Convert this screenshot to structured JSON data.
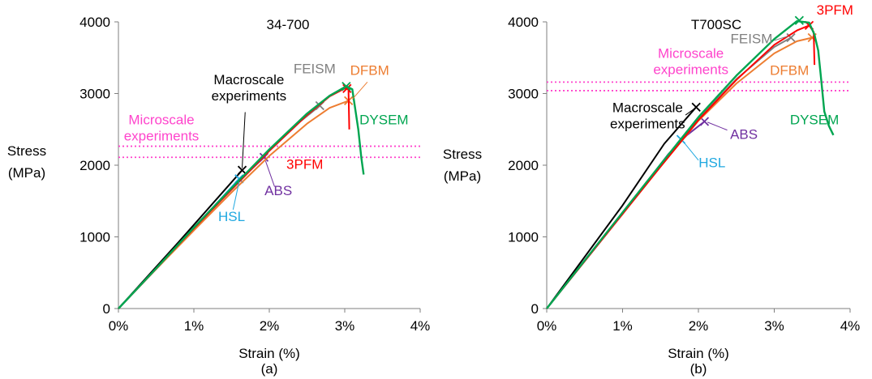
{
  "colors": {
    "macro": "#000000",
    "hsl": "#1fa8e0",
    "abs": "#7030a0",
    "feism": "#808080",
    "dfbm": "#ed7d31",
    "3pfm": "#ff0000",
    "dysem": "#00a550",
    "micro": "#ff44cc",
    "axis": "#7f7f7f"
  },
  "chart_data": [
    {
      "type": "line",
      "panel_label": "(a)",
      "title": "34-700",
      "xlabel": "Strain (%)",
      "ylabel_line1": "Stress",
      "ylabel_line2": "(MPa)",
      "xlim": [
        0,
        4
      ],
      "ylim": [
        0,
        4000
      ],
      "xticks": [
        0,
        1,
        2,
        3,
        4
      ],
      "xtick_labels": [
        "0%",
        "1%",
        "2%",
        "3%",
        "4%"
      ],
      "yticks": [
        0,
        1000,
        2000,
        3000,
        4000
      ],
      "ytick_labels": [
        "0",
        "1000",
        "2000",
        "3000",
        "4000"
      ],
      "grid": false,
      "hlines": [
        {
          "key": "micro",
          "y": 2265,
          "style": "dotted"
        },
        {
          "key": "micro",
          "y": 2110,
          "style": "dotted"
        }
      ],
      "series": [
        {
          "key": "macro",
          "name": "Macroscale experiments",
          "points": [
            [
              0,
              0
            ],
            [
              0.8,
              930
            ],
            [
              1.64,
              1930
            ]
          ],
          "end_marker": [
            1.64,
            1930
          ]
        },
        {
          "key": "hsl",
          "name": "HSL",
          "points": [
            [
              0,
              0
            ],
            [
              0.8,
              890
            ],
            [
              1.6,
              1810
            ]
          ],
          "end_marker": [
            1.6,
            1810
          ]
        },
        {
          "key": "abs",
          "name": "ABS",
          "points": [
            [
              0,
              0
            ],
            [
              0.8,
              880
            ],
            [
              1.5,
              1680
            ],
            [
              1.93,
              2110
            ]
          ],
          "end_marker": [
            1.93,
            2110
          ]
        },
        {
          "key": "feism",
          "name": "FEISM",
          "points": [
            [
              0,
              0
            ],
            [
              0.5,
              560
            ],
            [
              1.0,
              1120
            ],
            [
              1.5,
              1660
            ],
            [
              2.0,
              2200
            ],
            [
              2.4,
              2600
            ],
            [
              2.67,
              2830
            ]
          ],
          "end_marker": [
            2.67,
            2830
          ]
        },
        {
          "key": "dfbm",
          "name": "DFBM",
          "points": [
            [
              0,
              0
            ],
            [
              0.5,
              550
            ],
            [
              1.0,
              1090
            ],
            [
              1.5,
              1620
            ],
            [
              2.0,
              2130
            ],
            [
              2.5,
              2580
            ],
            [
              2.8,
              2800
            ],
            [
              3.05,
              2900
            ]
          ],
          "end_marker": [
            3.05,
            2900
          ]
        },
        {
          "key": "3pfm",
          "name": "3PFM",
          "points": [
            [
              0,
              0
            ],
            [
              0.5,
              560
            ],
            [
              1.0,
              1120
            ],
            [
              1.5,
              1660
            ],
            [
              2.0,
              2200
            ],
            [
              2.5,
              2700
            ],
            [
              2.8,
              2960
            ],
            [
              3.0,
              3070
            ],
            [
              3.05,
              3060
            ],
            [
              3.06,
              2500
            ]
          ],
          "end_marker": [
            3.03,
            3070
          ]
        },
        {
          "key": "dysem",
          "name": "DYSEM",
          "points": [
            [
              0,
              0
            ],
            [
              0.5,
              560
            ],
            [
              1.0,
              1130
            ],
            [
              1.5,
              1680
            ],
            [
              2.0,
              2220
            ],
            [
              2.5,
              2720
            ],
            [
              2.8,
              2970
            ],
            [
              3.02,
              3100
            ],
            [
              3.1,
              3060
            ],
            [
              3.18,
              2500
            ],
            [
              3.22,
              2100
            ],
            [
              3.25,
              1870
            ]
          ],
          "end_marker": [
            3.02,
            3100
          ]
        }
      ],
      "labels": [
        {
          "key": "macro",
          "lines": [
            "Macroscale",
            "experiments"
          ],
          "x": 1.73,
          "y": 3130,
          "anchor": "middle",
          "leader": [
            [
              1.68,
              2740
            ],
            [
              1.64,
              1960
            ]
          ]
        },
        {
          "key": "micro",
          "lines": [
            "Microscale",
            "experiments"
          ],
          "x": 0.57,
          "y": 2570,
          "anchor": "middle"
        },
        {
          "key": "feism",
          "lines": [
            "FEISM"
          ],
          "x": 2.6,
          "y": 3280,
          "anchor": "middle"
        },
        {
          "key": "dfbm",
          "lines": [
            "DFBM"
          ],
          "x": 3.33,
          "y": 3260,
          "anchor": "middle",
          "leader": [
            [
              3.3,
              3160
            ],
            [
              3.1,
              2920
            ]
          ]
        },
        {
          "key": "dysem",
          "lines": [
            "DYSEM"
          ],
          "x": 3.52,
          "y": 2570,
          "anchor": "middle"
        },
        {
          "key": "3pfm",
          "lines": [
            "3PFM"
          ],
          "x": 2.47,
          "y": 1950,
          "anchor": "middle"
        },
        {
          "key": "abs",
          "lines": [
            "ABS"
          ],
          "x": 2.12,
          "y": 1580,
          "anchor": "middle",
          "leader": [
            [
              2.07,
              1700
            ],
            [
              1.95,
              2060
            ]
          ]
        },
        {
          "key": "hsl",
          "lines": [
            "HSL"
          ],
          "x": 1.5,
          "y": 1220,
          "anchor": "middle",
          "leader": [
            [
              1.52,
              1380
            ],
            [
              1.6,
              1770
            ]
          ]
        }
      ]
    },
    {
      "type": "line",
      "panel_label": "(b)",
      "title": "T700SC",
      "xlabel": "Strain (%)",
      "ylabel_line1": "Stress",
      "ylabel_line2": "(MPa)",
      "xlim": [
        0,
        4
      ],
      "ylim": [
        0,
        4000
      ],
      "xticks": [
        0,
        1,
        2,
        3,
        4
      ],
      "xtick_labels": [
        "0%",
        "1%",
        "2%",
        "3%",
        "4%"
      ],
      "yticks": [
        0,
        1000,
        2000,
        3000,
        4000
      ],
      "ytick_labels": [
        "0",
        "1000",
        "2000",
        "3000",
        "4000"
      ],
      "grid": false,
      "hlines": [
        {
          "key": "micro",
          "y": 3160,
          "style": "dotted"
        },
        {
          "key": "micro",
          "y": 3040,
          "style": "dotted"
        }
      ],
      "series": [
        {
          "key": "macro",
          "name": "Macroscale experiments",
          "points": [
            [
              0,
              0
            ],
            [
              1.0,
              1440
            ],
            [
              1.55,
              2300
            ],
            [
              1.97,
              2810
            ]
          ],
          "end_marker": [
            1.97,
            2810
          ]
        },
        {
          "key": "hsl",
          "name": "HSL",
          "points": [
            [
              0,
              0
            ],
            [
              1.0,
              1340
            ],
            [
              1.77,
              2360
            ]
          ],
          "end_marker": [
            1.77,
            2360
          ]
        },
        {
          "key": "abs",
          "name": "ABS",
          "points": [
            [
              0,
              0
            ],
            [
              1.0,
              1320
            ],
            [
              1.6,
              2150
            ],
            [
              1.85,
              2420
            ],
            [
              2.08,
              2610
            ]
          ],
          "end_marker": [
            2.08,
            2610
          ]
        },
        {
          "key": "feism",
          "name": "FEISM",
          "points": [
            [
              0,
              0
            ],
            [
              1.0,
              1340
            ],
            [
              1.5,
              2000
            ],
            [
              2.0,
              2650
            ],
            [
              2.5,
              3200
            ],
            [
              3.0,
              3650
            ],
            [
              3.22,
              3780
            ]
          ],
          "end_marker": [
            3.22,
            3780
          ]
        },
        {
          "key": "dfbm",
          "name": "DFBM",
          "points": [
            [
              0,
              0
            ],
            [
              1.0,
              1320
            ],
            [
              1.5,
              1980
            ],
            [
              2.0,
              2620
            ],
            [
              2.5,
              3140
            ],
            [
              3.0,
              3560
            ],
            [
              3.3,
              3730
            ],
            [
              3.5,
              3780
            ]
          ],
          "end_marker": [
            3.5,
            3780
          ]
        },
        {
          "key": "3pfm",
          "name": "3PFM",
          "points": [
            [
              0,
              0
            ],
            [
              1.0,
              1320
            ],
            [
              1.5,
              1980
            ],
            [
              2.0,
              2630
            ],
            [
              2.5,
              3190
            ],
            [
              3.0,
              3680
            ],
            [
              3.3,
              3880
            ],
            [
              3.46,
              3950
            ],
            [
              3.52,
              3860
            ],
            [
              3.53,
              3400
            ]
          ],
          "end_marker": [
            3.46,
            3950
          ]
        },
        {
          "key": "dysem",
          "name": "DYSEM",
          "points": [
            [
              0,
              0
            ],
            [
              1.0,
              1340
            ],
            [
              1.5,
              2010
            ],
            [
              2.0,
              2670
            ],
            [
              2.5,
              3250
            ],
            [
              3.0,
              3760
            ],
            [
              3.3,
              4010
            ],
            [
              3.46,
              3990
            ],
            [
              3.53,
              3820
            ],
            [
              3.58,
              3600
            ],
            [
              3.62,
              3180
            ],
            [
              3.66,
              2750
            ],
            [
              3.72,
              2550
            ],
            [
              3.78,
              2420
            ]
          ],
          "end_marker": [
            3.33,
            4020
          ]
        }
      ],
      "labels": [
        {
          "key": "macro",
          "lines": [
            "Macroscale",
            "experiments"
          ],
          "x": 1.33,
          "y": 2740,
          "anchor": "middle",
          "leader": [
            [
              1.83,
              2700
            ],
            [
              1.95,
              2790
            ]
          ]
        },
        {
          "key": "micro",
          "lines": [
            "Microscale",
            "experiments"
          ],
          "x": 1.9,
          "y": 3500,
          "anchor": "middle"
        },
        {
          "key": "feism",
          "lines": [
            "FEISM"
          ],
          "x": 2.7,
          "y": 3700,
          "anchor": "middle",
          "leader": [
            [
              3.0,
              3740
            ],
            [
              3.18,
              3800
            ]
          ]
        },
        {
          "key": "dfbm",
          "lines": [
            "DFBM"
          ],
          "x": 3.2,
          "y": 3260,
          "anchor": "middle"
        },
        {
          "key": "3pfm",
          "lines": [
            "3PFM"
          ],
          "x": 3.8,
          "y": 4100,
          "anchor": "middle"
        },
        {
          "key": "dysem",
          "lines": [
            "DYSEM"
          ],
          "x": 3.53,
          "y": 2570,
          "anchor": "middle"
        },
        {
          "key": "abs",
          "lines": [
            "ABS"
          ],
          "x": 2.6,
          "y": 2370,
          "anchor": "middle",
          "leader": [
            [
              2.38,
              2490
            ],
            [
              2.12,
              2600
            ]
          ]
        },
        {
          "key": "hsl",
          "lines": [
            "HSL"
          ],
          "x": 2.18,
          "y": 1970,
          "anchor": "middle",
          "leader": [
            [
              2.0,
              2070
            ],
            [
              1.8,
              2330
            ]
          ]
        }
      ]
    }
  ]
}
